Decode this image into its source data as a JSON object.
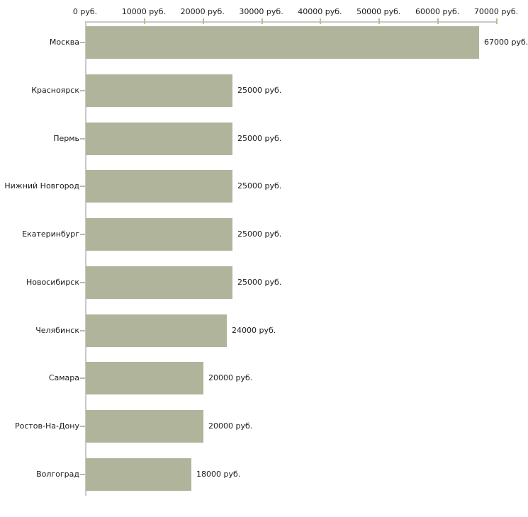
{
  "chart_data": {
    "type": "bar",
    "orientation": "horizontal",
    "title": "",
    "xlabel": "",
    "ylabel": "",
    "categories": [
      "Москва",
      "Красноярск",
      "Пермь",
      "Нижний Новгород",
      "Екатеринбург",
      "Новосибирск",
      "Челябинск",
      "Самара",
      "Ростов-На-Дону",
      "Волгоград"
    ],
    "values": [
      67000,
      25000,
      25000,
      25000,
      25000,
      25000,
      24000,
      20000,
      20000,
      18000
    ],
    "value_labels": [
      "67000 руб.",
      "25000 руб.",
      "25000 руб.",
      "25000 руб.",
      "25000 руб.",
      "25000 руб.",
      "24000 руб.",
      "20000 руб.",
      "20000 руб.",
      "18000 руб."
    ],
    "x_axis": {
      "position": "top",
      "min": 0,
      "max": 70000,
      "ticks": [
        0,
        10000,
        20000,
        30000,
        40000,
        50000,
        60000,
        70000
      ],
      "tick_labels": [
        "0 руб.",
        "10000 руб.",
        "20000 руб.",
        "30000 руб.",
        "40000 руб.",
        "50000 руб.",
        "60000 руб.",
        "70000 руб."
      ]
    },
    "grid": false,
    "legend": false,
    "colors": {
      "bar": "#afb49b",
      "axis_line": "#c9c9c9",
      "tick_mark": "#bcbd92",
      "text": "#1a1a1a",
      "background": "#ffffff"
    }
  }
}
